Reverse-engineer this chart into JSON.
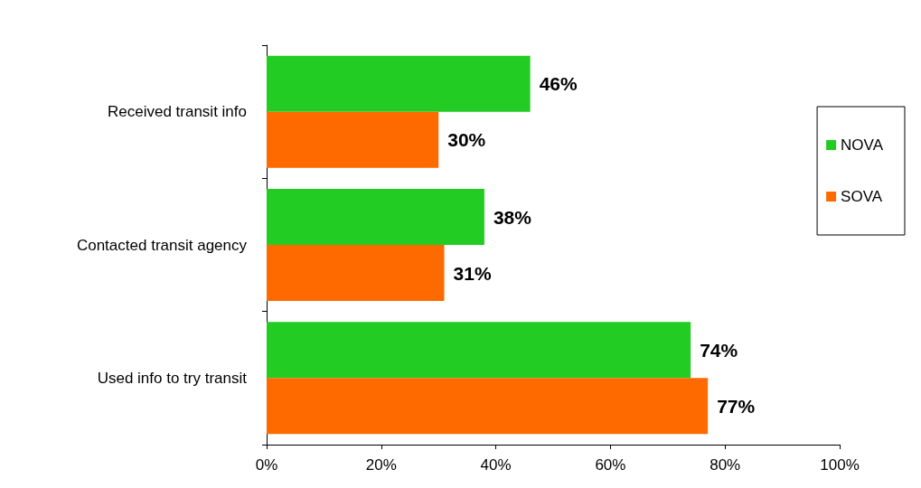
{
  "chart_data": {
    "type": "bar",
    "orientation": "horizontal",
    "categories": [
      "Received transit info",
      "Contacted transit agency",
      "Used info to try transit"
    ],
    "series": [
      {
        "name": "NOVA",
        "color": "#22cc22",
        "values": [
          46,
          38,
          74
        ],
        "value_labels": [
          "46%",
          "38%",
          "74%"
        ]
      },
      {
        "name": "SOVA",
        "color": "#ff6a00",
        "values": [
          30,
          31,
          77
        ],
        "value_labels": [
          "30%",
          "31%",
          "77%"
        ]
      }
    ],
    "xlim": [
      0,
      100
    ],
    "xticks": [
      {
        "value": 0,
        "label": "0%"
      },
      {
        "value": 20,
        "label": "20%"
      },
      {
        "value": 40,
        "label": "40%"
      },
      {
        "value": 60,
        "label": "60%"
      },
      {
        "value": 80,
        "label": "80%"
      },
      {
        "value": 100,
        "label": "100%"
      }
    ],
    "grid": false,
    "legend": "right"
  }
}
